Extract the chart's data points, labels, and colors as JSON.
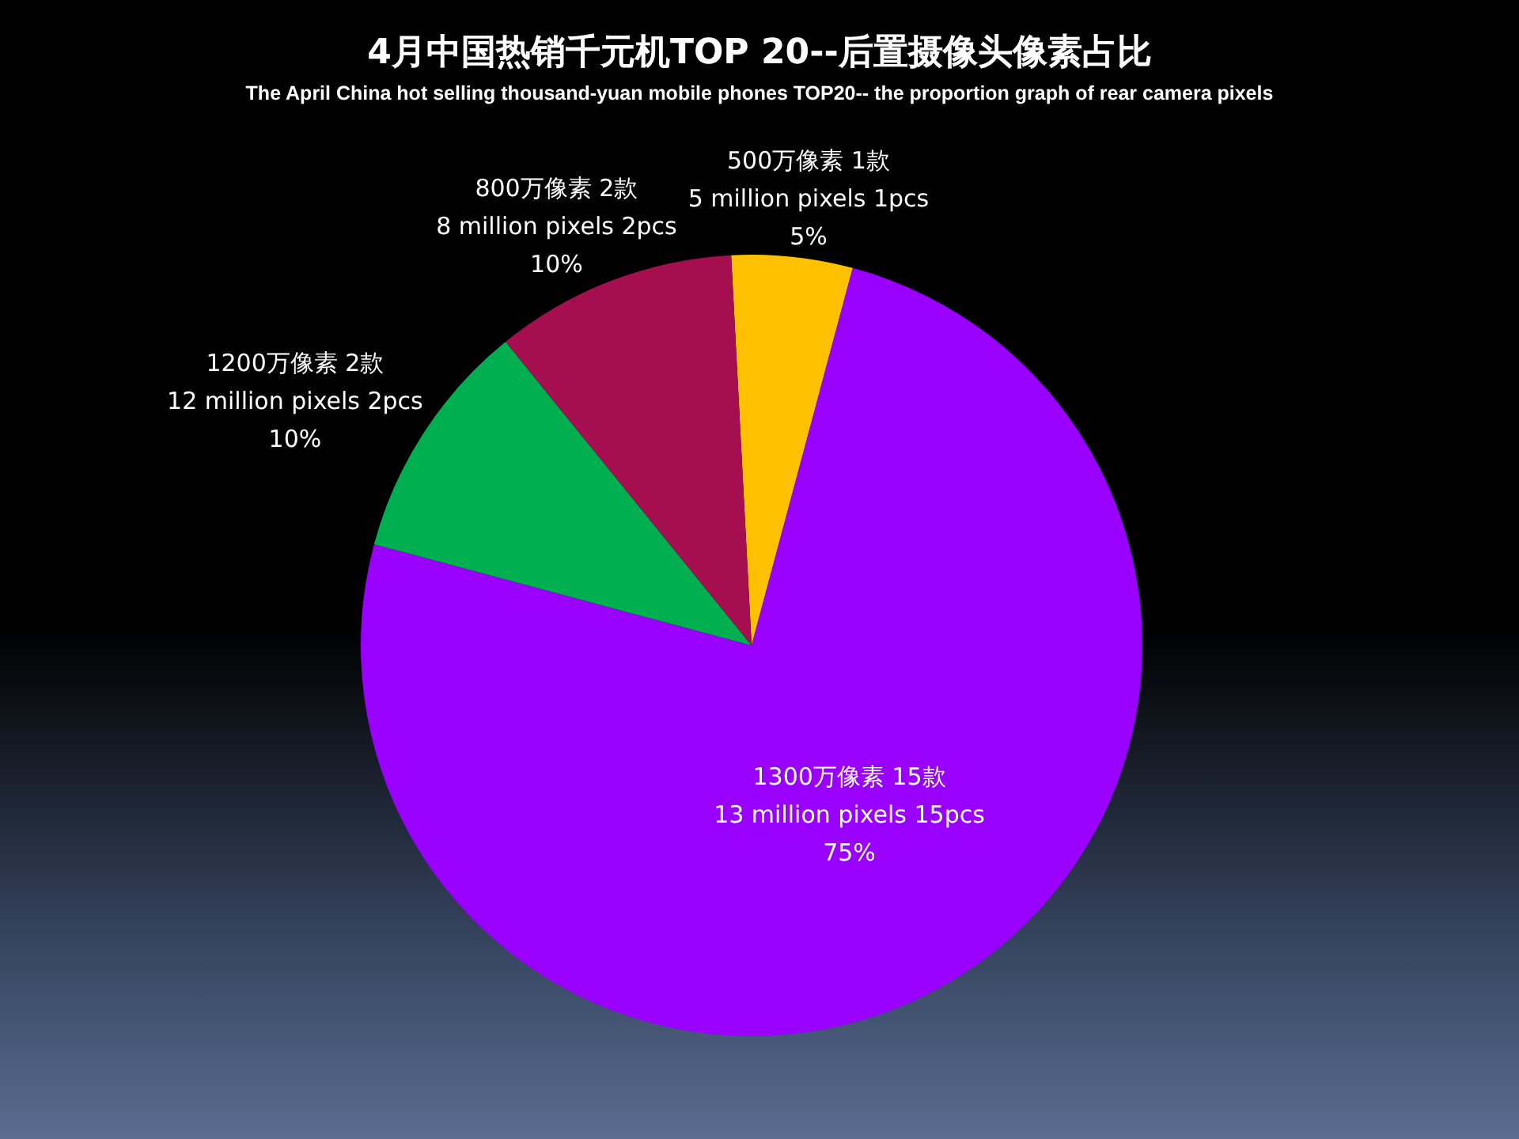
{
  "chart_data": {
    "type": "pie",
    "title": "4月中国热销千元机TOP 20--后置摄像头像素占比",
    "subtitle": "The April China hot selling thousand-yuan mobile phones TOP20-- the proportion graph of rear camera pixels",
    "categories": [
      "500万像素  1款\n5 million pixels 1pcs",
      "1300万像素 15款\n13 million pixels 15pcs",
      "1200万像素  2款\n12 million pixels 2pcs",
      "800万像素  2款\n8 million pixels 2pcs"
    ],
    "values": [
      5,
      75,
      10,
      10
    ],
    "value_labels": [
      "5%",
      "75%",
      "10%",
      "10%"
    ],
    "colors": [
      "#ffc000",
      "#9900ff",
      "#00b050",
      "#a50f50"
    ]
  }
}
